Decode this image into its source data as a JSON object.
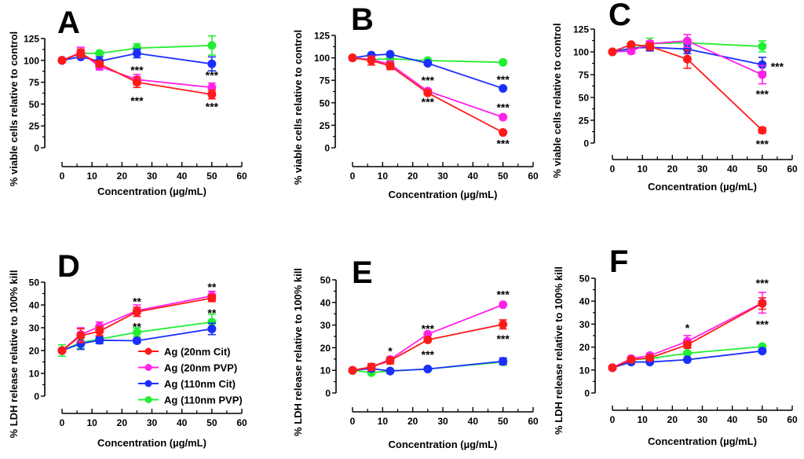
{
  "figure": {
    "legend": {
      "placement": "inside-panel-D-lower-right",
      "entries": [
        {
          "label": "Ag (20nm Cit)",
          "color": "#ff1a1a"
        },
        {
          "label": "Ag (20nm PVP)",
          "color": "#ff22e8"
        },
        {
          "label": "Ag (110nm Cit)",
          "color": "#1a2fff"
        },
        {
          "label": "Ag (110nm PVP)",
          "color": "#22ee33"
        }
      ]
    }
  },
  "chart_data": [
    {
      "panel": "A",
      "type": "line",
      "xlabel": "Concentration (µg/mL)",
      "ylabel": "% viable cells relative to control",
      "xlim": [
        0,
        60
      ],
      "ylim": [
        0,
        125
      ],
      "xticks": [
        0,
        10,
        20,
        30,
        40,
        50,
        60
      ],
      "yticks": [
        0,
        25,
        50,
        75,
        100,
        125
      ],
      "x": [
        0,
        6.25,
        12.5,
        25,
        50
      ],
      "series": [
        {
          "name": "Ag (20nm Cit)",
          "values": [
            100,
            108,
            96,
            75,
            61
          ],
          "errors": [
            0,
            5,
            3,
            6,
            5
          ]
        },
        {
          "name": "Ag (20nm PVP)",
          "values": [
            100,
            109,
            93,
            78,
            69
          ],
          "errors": [
            0,
            6,
            4,
            6,
            5
          ]
        },
        {
          "name": "Ag (110nm Cit)",
          "values": [
            100,
            104,
            99,
            108,
            96
          ],
          "errors": [
            0,
            2,
            5,
            5,
            8
          ]
        },
        {
          "name": "Ag (110nm PVP)",
          "values": [
            100,
            108,
            108,
            114,
            117
          ],
          "errors": [
            0,
            3,
            2,
            5,
            11
          ]
        }
      ],
      "annotations": [
        {
          "text": "***",
          "x": 25,
          "y": 89
        },
        {
          "text": "***",
          "x": 25,
          "y": 54
        },
        {
          "text": "***",
          "x": 50,
          "y": 83
        },
        {
          "text": "***",
          "x": 50,
          "y": 47
        }
      ]
    },
    {
      "panel": "B",
      "type": "line",
      "xlabel": "Concentration (µg/mL)",
      "ylabel": "% viable cells relative to control",
      "xlim": [
        0,
        60
      ],
      "ylim": [
        0,
        125
      ],
      "xticks": [
        0,
        10,
        20,
        30,
        40,
        50,
        60
      ],
      "yticks": [
        0,
        25,
        50,
        75,
        100,
        125
      ],
      "x": [
        0,
        6.25,
        12.5,
        25,
        50
      ],
      "series": [
        {
          "name": "Ag (20nm Cit)",
          "values": [
            100,
            97,
            91,
            61,
            17
          ],
          "errors": [
            0,
            5,
            4,
            2,
            1
          ]
        },
        {
          "name": "Ag (20nm PVP)",
          "values": [
            100,
            98,
            93,
            63,
            34
          ],
          "errors": [
            0,
            3,
            3,
            2,
            1
          ]
        },
        {
          "name": "Ag (110nm Cit)",
          "values": [
            100,
            103,
            104,
            94,
            66
          ],
          "errors": [
            0,
            1,
            1,
            1,
            1
          ]
        },
        {
          "name": "Ag (110nm PVP)",
          "values": [
            100,
            98,
            99,
            97,
            95
          ],
          "errors": [
            0,
            1,
            1,
            1,
            1
          ]
        }
      ],
      "annotations": [
        {
          "text": "***",
          "x": 25,
          "y": 75
        },
        {
          "text": "***",
          "x": 25,
          "y": 51
        },
        {
          "text": "***",
          "x": 50,
          "y": 76
        },
        {
          "text": "***",
          "x": 50,
          "y": 45
        },
        {
          "text": "***",
          "x": 50,
          "y": 5
        }
      ]
    },
    {
      "panel": "C",
      "type": "line",
      "xlabel": "Concentration (µg/mL)",
      "ylabel": "% viable cells relative to control",
      "xlim": [
        0,
        60
      ],
      "ylim": [
        0,
        125
      ],
      "xticks": [
        0,
        10,
        20,
        30,
        40,
        50,
        60
      ],
      "yticks": [
        0,
        25,
        50,
        75,
        100,
        125
      ],
      "x": [
        0,
        6.25,
        12.5,
        25,
        50
      ],
      "series": [
        {
          "name": "Ag (20nm Cit)",
          "values": [
            100,
            108,
            106,
            92,
            14
          ],
          "errors": [
            0,
            1,
            4,
            10,
            3
          ]
        },
        {
          "name": "Ag (20nm PVP)",
          "values": [
            100,
            101,
            109,
            112,
            75
          ],
          "errors": [
            0,
            3,
            3,
            7,
            10
          ]
        },
        {
          "name": "Ag (110nm Cit)",
          "values": [
            100,
            104,
            105,
            103,
            86
          ],
          "errors": [
            0,
            2,
            4,
            5,
            8
          ]
        },
        {
          "name": "Ag (110nm PVP)",
          "values": [
            100,
            103,
            109,
            110,
            106
          ],
          "errors": [
            0,
            2,
            6,
            4,
            6
          ]
        }
      ],
      "annotations": [
        {
          "text": "***",
          "x": 55,
          "y": 84
        },
        {
          "text": "***",
          "x": 50,
          "y": 54
        },
        {
          "text": "***",
          "x": 50,
          "y": -1
        }
      ]
    },
    {
      "panel": "D",
      "type": "line",
      "xlabel": "Concentration (µg/mL)",
      "ylabel": "% LDH release relative to 100% kill",
      "xlim": [
        0,
        60
      ],
      "ylim": [
        0,
        50
      ],
      "xticks": [
        0,
        10,
        20,
        30,
        40,
        50,
        60
      ],
      "yticks": [
        0,
        10,
        20,
        30,
        40,
        50
      ],
      "x": [
        0,
        6.25,
        12.5,
        25,
        50
      ],
      "series": [
        {
          "name": "Ag (20nm Cit)",
          "values": [
            20,
            26.5,
            28.5,
            37,
            43
          ],
          "errors": [
            0,
            3,
            2,
            2,
            1.5
          ]
        },
        {
          "name": "Ag (20nm PVP)",
          "values": [
            20,
            27,
            30.5,
            37.5,
            44
          ],
          "errors": [
            0,
            3,
            2,
            2.5,
            2
          ]
        },
        {
          "name": "Ag (110nm Cit)",
          "values": [
            20,
            23,
            24.5,
            24.3,
            29.5
          ],
          "errors": [
            0,
            2.5,
            1.5,
            1,
            2.5
          ]
        },
        {
          "name": "Ag (110nm PVP)",
          "values": [
            20,
            23.5,
            25,
            28,
            32.5
          ],
          "errors": [
            2.5,
            2.5,
            1.5,
            2,
            3.5
          ]
        }
      ],
      "annotations": [
        {
          "text": "**",
          "x": 25,
          "y": 41.5
        },
        {
          "text": "**",
          "x": 25,
          "y": 30.5
        },
        {
          "text": "**",
          "x": 50,
          "y": 48
        },
        {
          "text": "**",
          "x": 50,
          "y": 36.5
        }
      ]
    },
    {
      "panel": "E",
      "type": "line",
      "xlabel": "Concentration (µg/mL)",
      "ylabel": "% LDH release relative to 100% kill",
      "xlim": [
        0,
        60
      ],
      "ylim": [
        0,
        50
      ],
      "xticks": [
        0,
        10,
        20,
        30,
        40,
        50,
        60
      ],
      "yticks": [
        0,
        10,
        20,
        30,
        40,
        50
      ],
      "x": [
        0,
        6.25,
        12.5,
        25,
        50
      ],
      "series": [
        {
          "name": "Ag (20nm Cit)",
          "values": [
            10,
            11.5,
            14.3,
            23.5,
            30.3
          ],
          "errors": [
            0,
            1.5,
            1.5,
            0.5,
            2
          ]
        },
        {
          "name": "Ag (20nm PVP)",
          "values": [
            10,
            11.5,
            14.8,
            26,
            39
          ],
          "errors": [
            0,
            0.5,
            0.5,
            0.5,
            0.5
          ]
        },
        {
          "name": "Ag (110nm Cit)",
          "values": [
            10,
            10.8,
            9.7,
            10.6,
            14
          ],
          "errors": [
            0,
            1,
            0.5,
            0.5,
            1.5
          ]
        },
        {
          "name": "Ag (110nm PVP)",
          "values": [
            10,
            9,
            9.7,
            10.6,
            13.7
          ],
          "errors": [
            0,
            0.5,
            0.5,
            0.5,
            1
          ]
        }
      ],
      "annotations": [
        {
          "text": "*",
          "x": 12.5,
          "y": 18.5
        },
        {
          "text": "***",
          "x": 25,
          "y": 28.5
        },
        {
          "text": "***",
          "x": 25,
          "y": 17
        },
        {
          "text": "***",
          "x": 50,
          "y": 43.5
        },
        {
          "text": "***",
          "x": 50,
          "y": 24
        }
      ]
    },
    {
      "panel": "F",
      "type": "line",
      "xlabel": "Concentration (µg/mL)",
      "ylabel": "% LDH release relative to 100% kill",
      "xlim": [
        0,
        60
      ],
      "ylim": [
        0,
        50
      ],
      "xticks": [
        0,
        10,
        20,
        30,
        40,
        50,
        60
      ],
      "yticks": [
        0,
        10,
        20,
        30,
        40,
        50
      ],
      "x": [
        0,
        6.25,
        12.5,
        25,
        50
      ],
      "series": [
        {
          "name": "Ag (20nm Cit)",
          "values": [
            11,
            14.5,
            15.3,
            21,
            39
          ],
          "errors": [
            0,
            0.5,
            0.5,
            1.5,
            2.5
          ]
        },
        {
          "name": "Ag (20nm PVP)",
          "values": [
            11,
            15,
            16.3,
            22.5,
            39.3
          ],
          "errors": [
            0,
            0.5,
            0.5,
            2.5,
            4.5
          ]
        },
        {
          "name": "Ag (110nm Cit)",
          "values": [
            11,
            13.5,
            13.5,
            14.5,
            18.3
          ],
          "errors": [
            0,
            0.5,
            0.5,
            0.5,
            0.5
          ]
        },
        {
          "name": "Ag (110nm PVP)",
          "values": [
            11,
            14.5,
            15,
            17.3,
            20.2
          ],
          "errors": [
            0,
            0.5,
            0.5,
            0.5,
            0.5
          ]
        }
      ],
      "annotations": [
        {
          "text": "*",
          "x": 25,
          "y": 28.5
        },
        {
          "text": "***",
          "x": 50,
          "y": 48
        },
        {
          "text": "***",
          "x": 50,
          "y": 30
        }
      ]
    }
  ]
}
